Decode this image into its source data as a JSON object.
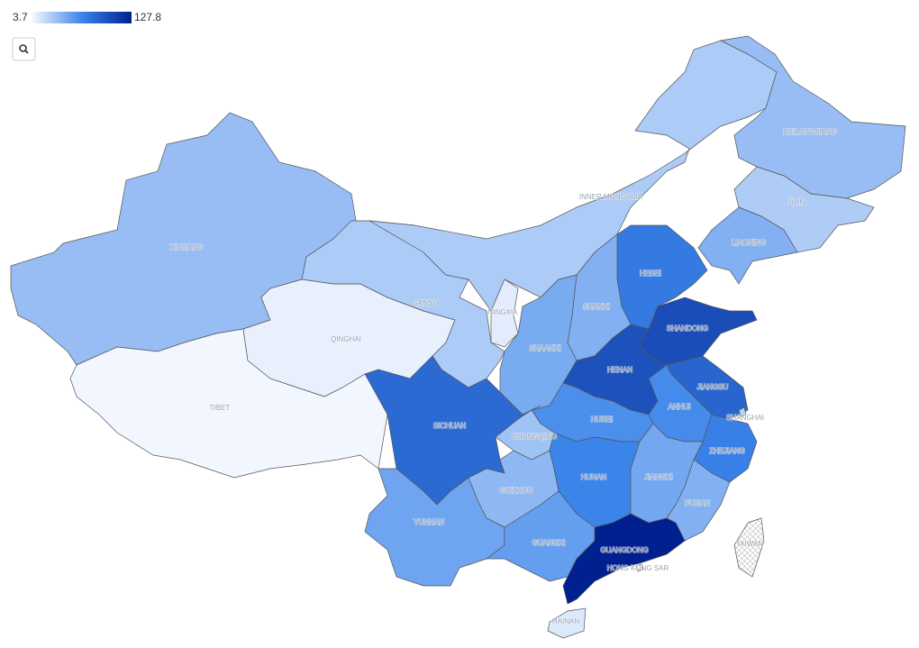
{
  "legend": {
    "min": 3.7,
    "max": 127.8
  },
  "regions": [
    {
      "name": "XINJIANG",
      "value": 35
    },
    {
      "name": "TIBET",
      "value": 5
    },
    {
      "name": "QINGHAI",
      "value": 8
    },
    {
      "name": "GANSU",
      "value": 28
    },
    {
      "name": "INNER MONGOLIA",
      "value": 28
    },
    {
      "name": "HEILONGJIANG",
      "value": 35
    },
    {
      "name": "JILIN",
      "value": 27
    },
    {
      "name": "LIAONING",
      "value": 42
    },
    {
      "name": "HEBEI",
      "value": 72
    },
    {
      "name": "SHANXI",
      "value": 42
    },
    {
      "name": "SHAANXI",
      "value": 45
    },
    {
      "name": "NINGXIA",
      "value": 10
    },
    {
      "name": "SHANDONG",
      "value": 100
    },
    {
      "name": "HENAN",
      "value": 97
    },
    {
      "name": "JIANGSU",
      "value": 85
    },
    {
      "name": "ANHUI",
      "value": 62
    },
    {
      "name": "ZHEJIANG",
      "value": 68
    },
    {
      "name": "HUBEI",
      "value": 60
    },
    {
      "name": "CHONGQING",
      "value": 32
    },
    {
      "name": "SICHUAN",
      "value": 82
    },
    {
      "name": "GUIZHOU",
      "value": 38
    },
    {
      "name": "YUNNAN",
      "value": 48
    },
    {
      "name": "HUNAN",
      "value": 66
    },
    {
      "name": "JIANGXI",
      "value": 47
    },
    {
      "name": "FUJIAN",
      "value": 42
    },
    {
      "name": "GUANGXI",
      "value": 52
    },
    {
      "name": "GUANGDONG",
      "value": 127.8
    },
    {
      "name": "HAINAN",
      "value": 12
    },
    {
      "name": "TAIWAN",
      "value": null
    },
    {
      "name": "HONG KONG SAR",
      "value": null
    },
    {
      "name": "SHANGHAI",
      "value": 25
    }
  ]
}
